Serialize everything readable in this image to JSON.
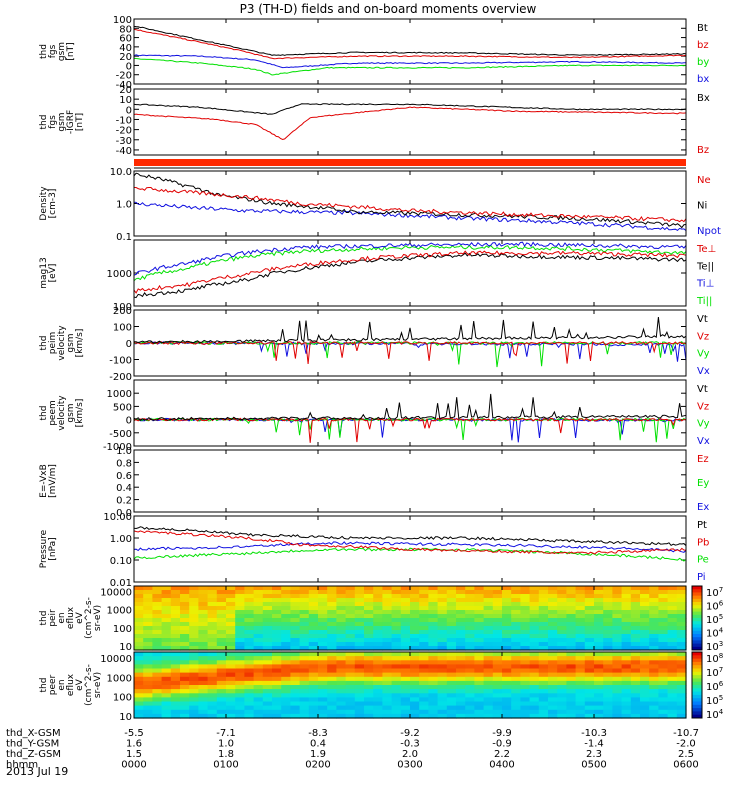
{
  "title": "P3 (TH-D) fields and on-board moments overview",
  "date": "2013 Jul 19",
  "colors": {
    "black": "#000000",
    "red": "#e00000",
    "green": "#00e000",
    "blue": "#1010e0"
  },
  "chart_data": [
    {
      "type": "line",
      "id": "fgs_gsm",
      "ylabel_lines": [
        "thd",
        "fgs",
        "gsm",
        "[nT]"
      ],
      "ylim": [
        -40,
        100
      ],
      "ticks": [
        100,
        80,
        60,
        40,
        20,
        0,
        -20,
        -40
      ],
      "series": [
        {
          "name": "Bt",
          "color": "black"
        },
        {
          "name": "bz",
          "color": "red"
        },
        {
          "name": "by",
          "color": "green"
        },
        {
          "name": "bx",
          "color": "blue"
        }
      ]
    },
    {
      "type": "line",
      "id": "fgs_gsm_zoom",
      "ylabel_lines": [
        "thd",
        "fgs",
        "gsm",
        "-IGRF",
        "[nT]"
      ],
      "ylim": [
        -45,
        20
      ],
      "ticks": [
        20,
        10,
        0,
        -10,
        -20,
        -30,
        -40
      ],
      "series": [
        {
          "name": "Bx",
          "color": "black"
        },
        {
          "name": "Bz",
          "color": "red"
        }
      ]
    },
    {
      "type": "line",
      "id": "density",
      "ylabel_lines": [
        "Density",
        "[cm-3]"
      ],
      "ylim": [
        0.1,
        10
      ],
      "log": true,
      "ticks": [
        10.0,
        1.0,
        0.1
      ],
      "tick_labels": [
        "10.0",
        "1.0",
        "0.1"
      ],
      "series": [
        {
          "name": "Ne",
          "color": "red"
        },
        {
          "name": "Ni",
          "color": "black"
        },
        {
          "name": "Npot",
          "color": "blue"
        }
      ]
    },
    {
      "type": "line",
      "id": "temperature",
      "ylabel_lines": [
        "mag13",
        "[eV]"
      ],
      "ylim": [
        100,
        10000
      ],
      "log": true,
      "ticks": [
        1000,
        100
      ],
      "tick_labels": [
        "1000",
        "100"
      ],
      "series": [
        {
          "name": "Te⊥",
          "color": "red"
        },
        {
          "name": "Te||",
          "color": "black"
        },
        {
          "name": "Ti⊥",
          "color": "blue"
        },
        {
          "name": "Ti||",
          "color": "green"
        }
      ]
    },
    {
      "type": "line",
      "id": "peim_velocity",
      "ylabel_lines": [
        "thd",
        "peim",
        "velocity",
        "gsm",
        "[km/s]"
      ],
      "ylim": [
        -200,
        200
      ],
      "ticks": [
        200,
        100,
        0,
        -100,
        -200
      ],
      "series": [
        {
          "name": "Vt",
          "color": "black"
        },
        {
          "name": "Vz",
          "color": "red"
        },
        {
          "name": "Vy",
          "color": "green"
        },
        {
          "name": "Vx",
          "color": "blue"
        }
      ]
    },
    {
      "type": "line",
      "id": "peem_velocity",
      "ylabel_lines": [
        "thd",
        "peem",
        "velocity",
        "gsm",
        "[km/s]"
      ],
      "ylim": [
        -1000,
        1500
      ],
      "ticks": [
        1000,
        500,
        0,
        -500,
        -1000
      ],
      "series": [
        {
          "name": "Vt",
          "color": "black"
        },
        {
          "name": "Vz",
          "color": "red"
        },
        {
          "name": "Vy",
          "color": "green"
        },
        {
          "name": "Vx",
          "color": "blue"
        }
      ]
    },
    {
      "type": "line",
      "id": "e_field",
      "ylabel_lines": [
        "E=-VxB",
        "[mV/m]"
      ],
      "ylim": [
        0,
        1
      ],
      "ticks": [
        1.0,
        0.8,
        0.6,
        0.4,
        0.2,
        0.0
      ],
      "tick_labels": [
        "1.0",
        "0.8",
        "0.6",
        "0.4",
        "0.2",
        "0.0"
      ],
      "series": [
        {
          "name": "Ez",
          "color": "red"
        },
        {
          "name": "Ey",
          "color": "green"
        },
        {
          "name": "Ex",
          "color": "blue"
        }
      ]
    },
    {
      "type": "line",
      "id": "pressure",
      "ylabel_lines": [
        "Pressure",
        "[nPa]"
      ],
      "ylim": [
        0.01,
        10
      ],
      "log": true,
      "ticks": [
        10.0,
        1.0,
        0.1,
        0.01
      ],
      "tick_labels": [
        "10.00",
        "1.00",
        "0.10",
        "0.01"
      ],
      "series": [
        {
          "name": "Pt",
          "color": "black"
        },
        {
          "name": "Pb",
          "color": "red"
        },
        {
          "name": "Pe",
          "color": "green"
        },
        {
          "name": "Pi",
          "color": "blue"
        }
      ]
    },
    {
      "type": "heatmap",
      "id": "peir_spec",
      "ylabel_lines": [
        "thd",
        "peir",
        "en",
        "eflux",
        "eV",
        "(cm^2-s-",
        "sr-eV)"
      ],
      "ylim": [
        6,
        20000
      ],
      "log": true,
      "ticks": [
        10000,
        1000,
        100,
        10
      ],
      "tick_labels": [
        "10000",
        "1000",
        "100",
        "10"
      ],
      "colorbar_labels": [
        "10^7",
        "10^6",
        "10^5",
        "10^4",
        "10^3"
      ]
    },
    {
      "type": "heatmap",
      "id": "peer_spec",
      "ylabel_lines": [
        "thd",
        "peer",
        "en",
        "eflux",
        "eV",
        "(cm^2-s-",
        "sr-eV)"
      ],
      "ylim": [
        8,
        20000
      ],
      "log": true,
      "ticks": [
        10000,
        1000,
        100,
        10
      ],
      "tick_labels": [
        "10000",
        "1000",
        "100",
        "10"
      ],
      "colorbar_labels": [
        "10^8",
        "10^7",
        "10^6",
        "10^5",
        "10^4"
      ]
    }
  ],
  "x_axis": {
    "row_labels": [
      "thd_X-GSM",
      "thd_Y-GSM",
      "thd_Z-GSM",
      "hhmm"
    ],
    "x_gsm": [
      "-5.5",
      "-7.1",
      "-8.3",
      "-9.2",
      "-9.9",
      "-10.3",
      "-10.7"
    ],
    "y_gsm": [
      "1.6",
      "1.0",
      "0.4",
      "-0.3",
      "-0.9",
      "-1.4",
      "-2.0"
    ],
    "z_gsm": [
      "1.5",
      "1.8",
      "1.9",
      "2.0",
      "2.2",
      "2.3",
      "2.5"
    ],
    "hhmm": [
      "0000",
      "0100",
      "0200",
      "0300",
      "0400",
      "0500",
      "0600"
    ]
  }
}
